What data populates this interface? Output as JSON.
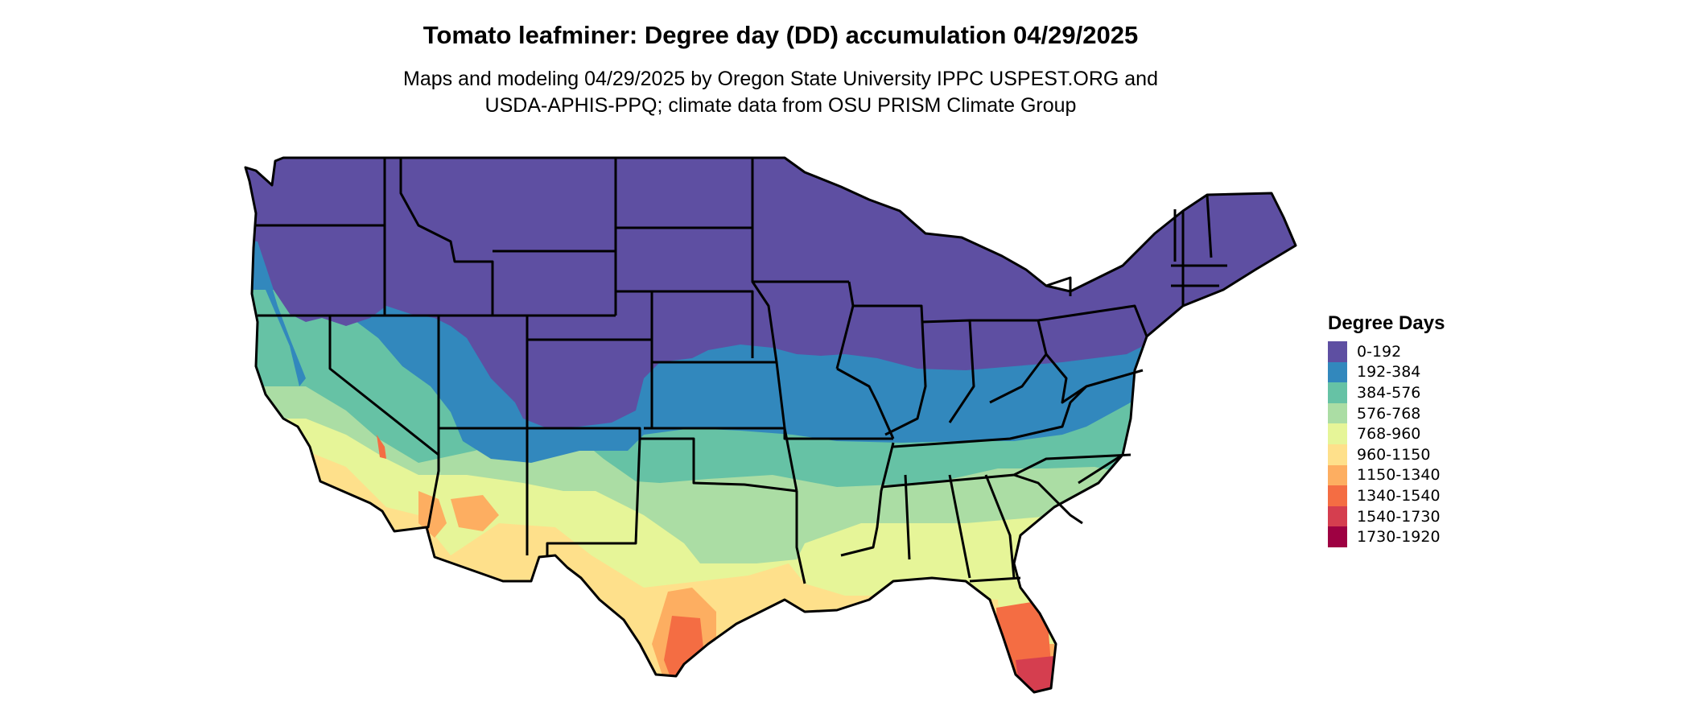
{
  "title": "Tomato leafminer: Degree day (DD) accumulation 04/29/2025",
  "subtitle_line1": "Maps and modeling 04/29/2025 by Oregon State University IPPC USPEST.ORG and",
  "subtitle_line2": "USDA-APHIS-PPQ; climate data from OSU PRISM Climate Group",
  "legend": {
    "title": "Degree Days",
    "items": [
      {
        "label": "0-192",
        "color": "#5e4fa2"
      },
      {
        "label": "192-384",
        "color": "#3288bd"
      },
      {
        "label": "384-576",
        "color": "#66c2a5"
      },
      {
        "label": "576-768",
        "color": "#abdda4"
      },
      {
        "label": "768-960",
        "color": "#e6f598"
      },
      {
        "label": "960-1150",
        "color": "#fee08b"
      },
      {
        "label": "1150-1340",
        "color": "#fdae61"
      },
      {
        "label": "1340-1540",
        "color": "#f46d43"
      },
      {
        "label": "1540-1730",
        "color": "#d53e4f"
      },
      {
        "label": "1730-1920",
        "color": "#9e0142"
      }
    ]
  }
}
